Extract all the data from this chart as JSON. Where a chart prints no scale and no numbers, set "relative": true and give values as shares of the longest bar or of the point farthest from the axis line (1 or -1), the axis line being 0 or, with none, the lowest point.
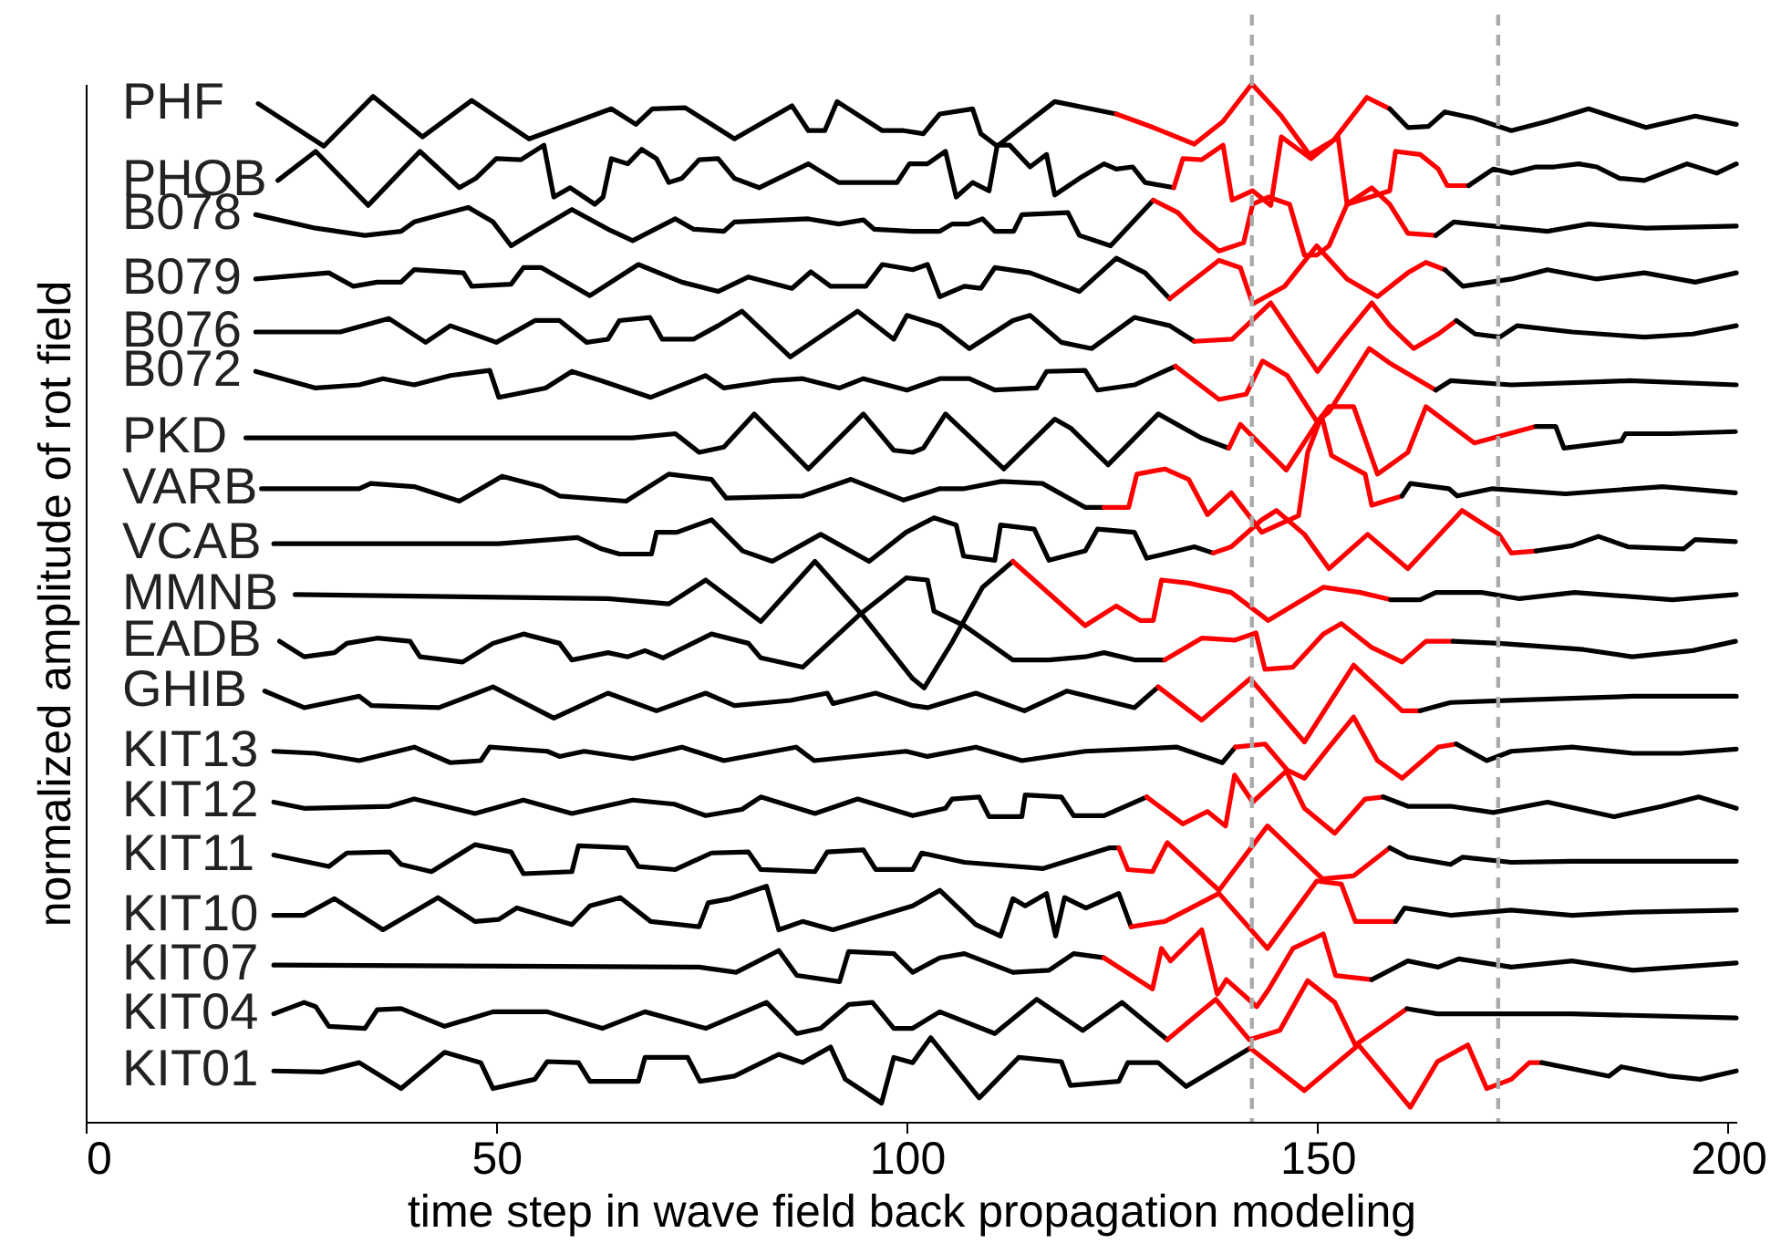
{
  "chart_data": {
    "type": "line",
    "relative": true,
    "xlabel": "time step in wave field back propagation modeling",
    "ylabel": "normalized amplitude of rot field",
    "xlim": [
      0,
      201
    ],
    "xticks": [
      0,
      50,
      100,
      150,
      200
    ],
    "ref_lines": [
      {
        "axis": "x",
        "value": 142,
        "color": "#aaaaaa",
        "line_style": "dashed"
      },
      {
        "axis": "x",
        "value": 172,
        "color": "#aaaaaa",
        "line_style": "dashed"
      }
    ],
    "series": [
      {
        "name": "PHF",
        "color": "#000000",
        "x": [
          21,
          29,
          35,
          41,
          47,
          54,
          64,
          67,
          69,
          73,
          75,
          79,
          86,
          88,
          90,
          91.5,
          97,
          99.6,
          102,
          104,
          108,
          109,
          111,
          118,
          125.5
        ],
        "values": [
          0.981,
          0.94,
          0.988,
          0.949,
          0.984,
          0.947,
          0.976,
          0.961,
          0.976,
          0.977,
          0.967,
          0.947,
          0.979,
          0.955,
          0.955,
          0.983,
          0.955,
          0.955,
          0.952,
          0.971,
          0.976,
          0.952,
          0.94,
          0.983,
          0.971
        ]
      },
      {
        "color": "#ff0000",
        "x": [
          125.5,
          130,
          135,
          138.5,
          142,
          145.5,
          149,
          152,
          156,
          158.8
        ],
        "values": [
          0.971,
          0.958,
          0.942,
          0.964,
          1.0,
          0.97,
          0.932,
          0.946,
          0.987,
          0.976
        ]
      },
      {
        "color": "#000000",
        "x": [
          158.8,
          161,
          163.5,
          165.5,
          169,
          173.6,
          178,
          183,
          190,
          196,
          201
        ],
        "values": [
          0.976,
          0.958,
          0.959,
          0.973,
          0.967,
          0.955,
          0.964,
          0.976,
          0.958,
          0.969,
          0.961
        ]
      },
      {
        "name": "PHOB",
        "color": "#000000",
        "x": [
          23.4,
          28,
          34.4,
          40.7,
          45.5,
          47.5,
          50,
          53,
          55.8,
          57,
          59,
          62,
          63,
          64,
          66,
          67.7,
          69.5,
          71,
          72.6,
          74.7,
          77,
          79,
          82,
          88,
          91.7,
          98.8,
          100.3,
          102.5,
          104.7,
          106,
          108,
          110,
          111,
          112.5,
          115,
          117,
          118,
          121,
          124,
          125.5,
          127.5,
          129,
          132.5
        ],
        "values": [
          0.907,
          0.935,
          0.883,
          0.935,
          0.9,
          0.909,
          0.928,
          0.927,
          0.941,
          0.891,
          0.9,
          0.884,
          0.891,
          0.928,
          0.923,
          0.937,
          0.928,
          0.905,
          0.909,
          0.927,
          0.928,
          0.909,
          0.9,
          0.923,
          0.905,
          0.905,
          0.923,
          0.923,
          0.935,
          0.891,
          0.905,
          0.897,
          0.941,
          0.941,
          0.92,
          0.932,
          0.893,
          0.909,
          0.923,
          0.918,
          0.92,
          0.905,
          0.9
        ]
      },
      {
        "color": "#ff0000",
        "x": [
          132.5,
          133.6,
          135.9,
          138.5,
          139.6,
          142.1,
          144.3,
          145.6,
          148,
          149.2,
          152.5,
          153.6,
          158.8,
          159.5,
          162.5,
          164.7,
          165.8,
          168.4
        ],
        "values": [
          0.9,
          0.928,
          0.927,
          0.941,
          0.888,
          0.897,
          0.883,
          0.949,
          0.935,
          0.928,
          0.949,
          0.884,
          0.897,
          0.935,
          0.932,
          0.918,
          0.902,
          0.902
        ]
      },
      {
        "color": "#000000",
        "x": [
          168.4,
          171.4,
          173.6,
          176.6,
          178.8,
          181.8,
          184,
          186.8,
          189.8,
          195,
          198.6,
          201
        ],
        "values": [
          0.902,
          0.918,
          0.914,
          0.92,
          0.92,
          0.923,
          0.92,
          0.909,
          0.907,
          0.923,
          0.914,
          0.923
        ]
      },
      {
        "name": "B078",
        "color": "#000000",
        "x": [
          20.7,
          28,
          34,
          38.4,
          40,
          46.6,
          49.6,
          51.8,
          54.7,
          59.2,
          63.6,
          66.6,
          71.8,
          74,
          77.7,
          79,
          88,
          91.7,
          94.7,
          96,
          100.7,
          104,
          105.5,
          107.5,
          109.2,
          110.7,
          113,
          114,
          119.6,
          121,
          124.8,
          130
        ],
        "values": [
          0.874,
          0.861,
          0.854,
          0.858,
          0.867,
          0.881,
          0.867,
          0.844,
          0.858,
          0.879,
          0.86,
          0.849,
          0.87,
          0.86,
          0.858,
          0.867,
          0.87,
          0.865,
          0.869,
          0.86,
          0.858,
          0.858,
          0.865,
          0.865,
          0.87,
          0.858,
          0.858,
          0.874,
          0.876,
          0.854,
          0.844,
          0.888
        ]
      },
      {
        "color": "#ff0000",
        "x": [
          130,
          133,
          135.1,
          138,
          141,
          142.1,
          144,
          146.6,
          148.4,
          149.9,
          151.4,
          153.6,
          156.6,
          158.8,
          161,
          164.4
        ],
        "values": [
          0.888,
          0.876,
          0.858,
          0.839,
          0.847,
          0.884,
          0.891,
          0.884,
          0.835,
          0.835,
          0.844,
          0.884,
          0.9,
          0.884,
          0.856,
          0.854
        ]
      },
      {
        "color": "#000000",
        "x": [
          164.4,
          166.6,
          171.4,
          178,
          183,
          190,
          201
        ],
        "values": [
          0.854,
          0.867,
          0.863,
          0.858,
          0.865,
          0.861,
          0.863
        ]
      },
      {
        "name": "B079",
        "color": "#000000",
        "x": [
          20.7,
          29.6,
          32.6,
          35.5,
          38.4,
          40,
          46,
          47,
          51.8,
          53.3,
          55.5,
          61.4,
          67.3,
          72.6,
          77,
          80.7,
          86,
          88.3,
          90.7,
          95,
          97,
          100.7,
          102.5,
          104,
          107,
          109,
          110.7,
          115,
          121,
          125.5,
          129,
          132
        ],
        "values": [
          0.812,
          0.818,
          0.805,
          0.809,
          0.809,
          0.821,
          0.818,
          0.805,
          0.807,
          0.823,
          0.823,
          0.796,
          0.826,
          0.809,
          0.8,
          0.814,
          0.803,
          0.819,
          0.805,
          0.805,
          0.826,
          0.821,
          0.826,
          0.795,
          0.805,
          0.803,
          0.823,
          0.818,
          0.8,
          0.832,
          0.818,
          0.793
        ]
      },
      {
        "color": "#ff0000",
        "x": [
          132,
          138,
          140.6,
          142.1,
          146,
          149.9,
          153.6,
          157.3,
          161,
          163.2,
          165.5
        ],
        "values": [
          0.793,
          0.83,
          0.823,
          0.788,
          0.805,
          0.844,
          0.812,
          0.795,
          0.818,
          0.828,
          0.821
        ]
      },
      {
        "color": "#000000",
        "x": [
          165.5,
          167.7,
          173.6,
          178,
          184,
          189.8,
          196,
          201
        ],
        "values": [
          0.821,
          0.805,
          0.812,
          0.821,
          0.812,
          0.818,
          0.809,
          0.818
        ]
      },
      {
        "name": "B076",
        "color": "#000000",
        "x": [
          20.7,
          31,
          36.9,
          41.4,
          44.4,
          50,
          54.7,
          57.7,
          61,
          63.6,
          65,
          68.7,
          70.2,
          74,
          77,
          79.9,
          85.8,
          94,
          98.4,
          100,
          104,
          107.6,
          112.9,
          115,
          118.8,
          122.5,
          127.7,
          132,
          135
        ],
        "values": [
          0.761,
          0.761,
          0.774,
          0.751,
          0.767,
          0.751,
          0.772,
          0.772,
          0.751,
          0.754,
          0.772,
          0.775,
          0.754,
          0.754,
          0.767,
          0.781,
          0.737,
          0.781,
          0.754,
          0.777,
          0.767,
          0.745,
          0.772,
          0.777,
          0.751,
          0.745,
          0.775,
          0.767,
          0.752
        ]
      },
      {
        "color": "#ff0000",
        "x": [
          135,
          139.6,
          144.3,
          147.3,
          150,
          153,
          156.6,
          158.8,
          161.7,
          164.7,
          166.9
        ],
        "values": [
          0.752,
          0.754,
          0.789,
          0.754,
          0.723,
          0.754,
          0.789,
          0.767,
          0.745,
          0.759,
          0.772
        ]
      },
      {
        "color": "#000000",
        "x": [
          166.9,
          169.2,
          172.2,
          174.3,
          181,
          189.8,
          195.7,
          201
        ],
        "values": [
          0.772,
          0.759,
          0.756,
          0.767,
          0.761,
          0.756,
          0.759,
          0.767
        ]
      },
      {
        "name": "B072",
        "color": "#000000",
        "x": [
          20.7,
          28,
          33.3,
          36.2,
          40,
          44.4,
          49.2,
          50.3,
          56,
          59.2,
          62.8,
          68.8,
          75.5,
          77.7,
          83.6,
          87.3,
          91.8,
          94.7,
          100,
          104,
          107.6,
          110.7,
          115.8,
          117,
          121.7,
          123.2,
          127.7,
          132.7
        ],
        "values": [
          0.723,
          0.707,
          0.71,
          0.716,
          0.71,
          0.719,
          0.724,
          0.698,
          0.707,
          0.723,
          0.714,
          0.698,
          0.719,
          0.707,
          0.714,
          0.716,
          0.707,
          0.716,
          0.705,
          0.716,
          0.716,
          0.705,
          0.707,
          0.723,
          0.724,
          0.705,
          0.71,
          0.728
        ]
      },
      {
        "color": "#ff0000",
        "x": [
          132.7,
          138,
          141.3,
          143.3,
          146.3,
          149.9,
          151.4,
          156.3,
          158.8,
          164.4
        ],
        "values": [
          0.728,
          0.696,
          0.701,
          0.733,
          0.719,
          0.675,
          0.684,
          0.745,
          0.731,
          0.705
        ]
      },
      {
        "color": "#000000",
        "x": [
          164.4,
          166.2,
          173.6,
          188,
          201
        ],
        "values": [
          0.705,
          0.714,
          0.71,
          0.714,
          0.71
        ]
      },
      {
        "name": "PKD",
        "color": "#000000",
        "x": [
          19.5,
          66.6,
          71.8,
          74.7,
          77.7,
          81.4,
          88,
          94.7,
          98.4,
          100.7,
          102,
          104.7,
          111.8,
          118,
          120,
          124.5,
          130.6,
          135.8,
          139.2
        ],
        "values": [
          0.659,
          0.659,
          0.663,
          0.645,
          0.65,
          0.682,
          0.629,
          0.682,
          0.647,
          0.645,
          0.649,
          0.682,
          0.629,
          0.677,
          0.668,
          0.633,
          0.682,
          0.659,
          0.649
        ]
      },
      {
        "color": "#ff0000",
        "x": [
          139.2,
          140.6,
          146.2,
          149.9,
          151.4,
          154.4,
          157.3,
          161,
          163.2,
          169.1,
          176.6
        ],
        "values": [
          0.649,
          0.672,
          0.628,
          0.673,
          0.689,
          0.689,
          0.624,
          0.645,
          0.689,
          0.654,
          0.67
        ]
      },
      {
        "color": "#000000",
        "x": [
          176.6,
          179,
          180,
          187,
          187.5,
          193,
          200.9
        ],
        "values": [
          0.67,
          0.67,
          0.649,
          0.656,
          0.663,
          0.663,
          0.665
        ]
      },
      {
        "name": "VARB",
        "color": "#000000",
        "x": [
          21.4,
          33.3,
          34.7,
          40,
          45.5,
          50.7,
          55.5,
          57.7,
          65.8,
          71,
          76.2,
          78,
          87.3,
          93.2,
          99.6,
          104,
          107,
          111.5,
          116.5,
          121.7,
          124
        ],
        "values": [
          0.61,
          0.61,
          0.615,
          0.612,
          0.598,
          0.622,
          0.612,
          0.603,
          0.598,
          0.624,
          0.619,
          0.601,
          0.603,
          0.619,
          0.599,
          0.61,
          0.61,
          0.617,
          0.615,
          0.592,
          0.592
        ]
      },
      {
        "color": "#ff0000",
        "x": [
          124,
          127,
          128,
          131.4,
          134.3,
          136.6,
          139.5,
          143.2,
          147.7,
          148.8,
          150.5,
          151.7,
          155.8,
          156.6,
          160.3
        ],
        "values": [
          0.592,
          0.592,
          0.624,
          0.629,
          0.619,
          0.585,
          0.606,
          0.568,
          0.584,
          0.645,
          0.68,
          0.642,
          0.624,
          0.594,
          0.603
        ]
      },
      {
        "color": "#000000",
        "x": [
          160.3,
          161.3,
          166,
          167,
          171.3,
          180.2,
          192,
          200.9
        ],
        "values": [
          0.603,
          0.615,
          0.61,
          0.603,
          0.61,
          0.605,
          0.612,
          0.606
        ]
      },
      {
        "name": "VCAB",
        "color": "#000000",
        "x": [
          22.9,
          50.3,
          59.9,
          62.8,
          65,
          68.9,
          69.5,
          72,
          76.2,
          80,
          83.6,
          89.5,
          95.4,
          99.9,
          103.3,
          106,
          106.9,
          110.7,
          111.4,
          115.5,
          117.3,
          121.7,
          123.2,
          127.7,
          129.2,
          135,
          137.3
        ],
        "values": [
          0.557,
          0.557,
          0.563,
          0.552,
          0.547,
          0.547,
          0.568,
          0.568,
          0.58,
          0.55,
          0.54,
          0.566,
          0.54,
          0.568,
          0.582,
          0.575,
          0.545,
          0.541,
          0.575,
          0.571,
          0.541,
          0.55,
          0.571,
          0.568,
          0.543,
          0.554,
          0.548
        ]
      },
      {
        "color": "#ff0000",
        "x": [
          137.3,
          139.5,
          143.2,
          145,
          148.4,
          151.4,
          156.1,
          161,
          167.6,
          172.1,
          173.6,
          176.6
        ],
        "values": [
          0.548,
          0.554,
          0.58,
          0.589,
          0.566,
          0.533,
          0.566,
          0.533,
          0.589,
          0.566,
          0.548,
          0.55
        ]
      },
      {
        "color": "#000000",
        "x": [
          176.6,
          181,
          184.2,
          187.8,
          194.6,
          196,
          200.9
        ],
        "values": [
          0.55,
          0.555,
          0.564,
          0.554,
          0.552,
          0.561,
          0.559
        ]
      },
      {
        "name": "MMNB",
        "color": "#000000",
        "x": [
          25.5,
          63.6,
          71,
          75.5,
          82.2,
          88.8,
          94.7,
          100.7,
          102.1,
          105.5,
          109.2,
          112.9
        ],
        "values": [
          0.508,
          0.504,
          0.499,
          0.522,
          0.482,
          0.54,
          0.487,
          0.427,
          0.418,
          0.462,
          0.515,
          0.54
        ]
      },
      {
        "color": "#ff0000",
        "x": [
          112.9,
          121.7,
          125.5,
          128.4,
          130,
          131,
          134.3,
          139.5,
          144,
          150.7,
          155.2,
          158.9
        ],
        "values": [
          0.54,
          0.478,
          0.497,
          0.483,
          0.483,
          0.522,
          0.519,
          0.51,
          0.483,
          0.515,
          0.51,
          0.503
        ]
      },
      {
        "color": "#000000",
        "x": [
          158.9,
          162.5,
          164.4,
          170,
          174.6,
          181.3,
          193.2,
          201
        ],
        "values": [
          0.503,
          0.503,
          0.51,
          0.51,
          0.504,
          0.51,
          0.503,
          0.508
        ]
      },
      {
        "name": "EADB",
        "color": "#000000",
        "x": [
          23.6,
          26.6,
          30.3,
          31.8,
          35.5,
          39.5,
          40.7,
          45.9,
          49.6,
          53.3,
          57.7,
          59.2,
          63.6,
          66,
          68.1,
          70.3,
          76.2,
          80.7,
          82.2,
          87.3,
          94,
          99.9,
          102.5,
          103.3,
          107,
          112.9,
          117.3,
          121.7,
          124,
          127.7,
          131.4
        ],
        "values": [
          0.463,
          0.448,
          0.452,
          0.461,
          0.466,
          0.463,
          0.448,
          0.443,
          0.461,
          0.47,
          0.461,
          0.445,
          0.452,
          0.448,
          0.454,
          0.447,
          0.47,
          0.461,
          0.447,
          0.438,
          0.487,
          0.524,
          0.522,
          0.492,
          0.478,
          0.445,
          0.445,
          0.448,
          0.452,
          0.445,
          0.445
        ]
      },
      {
        "color": "#ff0000",
        "x": [
          131.4,
          135.9,
          139.9,
          142.5,
          143.6,
          147,
          150.7,
          152.9,
          156.6,
          160.3,
          163.2,
          166.5
        ],
        "values": [
          0.445,
          0.466,
          0.464,
          0.471,
          0.436,
          0.438,
          0.47,
          0.48,
          0.457,
          0.443,
          0.463,
          0.463
        ]
      },
      {
        "color": "#000000",
        "x": [
          166.5,
          172.1,
          182.4,
          188.3,
          195.7,
          200.9
        ],
        "values": [
          0.463,
          0.461,
          0.455,
          0.448,
          0.454,
          0.463
        ]
      },
      {
        "name": "GHIB",
        "color": "#000000",
        "x": [
          21.8,
          26.6,
          33.3,
          34.8,
          43,
          49.6,
          57,
          63.6,
          69.5,
          75.5,
          79,
          85.8,
          90.3,
          91,
          96.2,
          100.7,
          102.5,
          108.4,
          114.3,
          119.5,
          127.7,
          130.6
        ],
        "values": [
          0.415,
          0.399,
          0.41,
          0.401,
          0.399,
          0.419,
          0.389,
          0.413,
          0.396,
          0.413,
          0.401,
          0.406,
          0.413,
          0.403,
          0.413,
          0.401,
          0.399,
          0.413,
          0.396,
          0.415,
          0.399,
          0.419
        ]
      },
      {
        "color": "#ff0000",
        "x": [
          130.6,
          135.9,
          141.8,
          148.4,
          154.4,
          160.3,
          162.5
        ],
        "values": [
          0.419,
          0.387,
          0.427,
          0.366,
          0.44,
          0.396,
          0.396
        ]
      },
      {
        "color": "#000000",
        "x": [
          162.5,
          166.2,
          173.6,
          181,
          188.4,
          201
        ],
        "values": [
          0.396,
          0.404,
          0.406,
          0.408,
          0.41,
          0.41
        ]
      },
      {
        "name": "KIT13",
        "color": "#000000",
        "x": [
          22.9,
          28,
          33.3,
          40,
          44.4,
          48.1,
          49.2,
          56.2,
          57.7,
          60.7,
          66.6,
          72.6,
          77.7,
          86.5,
          88.7,
          99.9,
          102.5,
          108.4,
          114,
          121.7,
          132.9,
          138.4,
          140
        ],
        "values": [
          0.357,
          0.355,
          0.348,
          0.361,
          0.346,
          0.348,
          0.361,
          0.357,
          0.352,
          0.357,
          0.35,
          0.361,
          0.348,
          0.361,
          0.348,
          0.357,
          0.352,
          0.361,
          0.348,
          0.357,
          0.361,
          0.346,
          0.361
        ]
      },
      {
        "color": "#ff0000",
        "x": [
          140,
          143.6,
          146.3,
          148.4,
          151.4,
          154.4,
          157.3,
          160.3,
          164.7,
          166.9
        ],
        "values": [
          0.361,
          0.364,
          0.339,
          0.331,
          0.361,
          0.39,
          0.348,
          0.331,
          0.361,
          0.364
        ]
      },
      {
        "color": "#000000",
        "x": [
          166.9,
          170.6,
          173.6,
          181,
          188.4,
          194.3,
          201
        ],
        "values": [
          0.364,
          0.348,
          0.357,
          0.361,
          0.355,
          0.355,
          0.359
        ]
      },
      {
        "name": "KIT12",
        "color": "#000000",
        "x": [
          22.9,
          26.6,
          37,
          40,
          47.4,
          53.3,
          59.2,
          66.6,
          71.7,
          75.5,
          79.9,
          82.2,
          88.8,
          94,
          100.7,
          104.7,
          105.5,
          108.8,
          110,
          114,
          114.4,
          118.8,
          120.3,
          124,
          129.2
        ],
        "values": [
          0.308,
          0.302,
          0.304,
          0.311,
          0.297,
          0.31,
          0.297,
          0.31,
          0.306,
          0.295,
          0.301,
          0.313,
          0.297,
          0.311,
          0.295,
          0.302,
          0.311,
          0.313,
          0.294,
          0.294,
          0.315,
          0.313,
          0.295,
          0.295,
          0.313
        ]
      },
      {
        "color": "#ff0000",
        "x": [
          129.2,
          133.6,
          136.6,
          138.8,
          139.9,
          142.1,
          146.2,
          148.4,
          152.1,
          155.8,
          158
        ],
        "values": [
          0.313,
          0.287,
          0.299,
          0.285,
          0.334,
          0.308,
          0.338,
          0.302,
          0.278,
          0.311,
          0.313
        ]
      },
      {
        "color": "#000000",
        "x": [
          158,
          161,
          166.2,
          171.4,
          178,
          186.1,
          192,
          196.4,
          201
        ],
        "values": [
          0.313,
          0.304,
          0.304,
          0.298,
          0.308,
          0.294,
          0.304,
          0.313,
          0.302
        ]
      },
      {
        "name": "KIT11",
        "color": "#000000",
        "x": [
          22.9,
          29.6,
          31.8,
          37,
          38.4,
          42.1,
          47.4,
          51.8,
          53.3,
          59.2,
          60,
          65.9,
          67.3,
          71.8,
          76.2,
          80.7,
          82.2,
          88.8,
          90.3,
          94.7,
          96.2,
          100.7,
          101.8,
          107,
          116.6,
          124.7,
          125.8
        ],
        "values": [
          0.257,
          0.246,
          0.259,
          0.26,
          0.248,
          0.241,
          0.267,
          0.26,
          0.239,
          0.241,
          0.266,
          0.264,
          0.246,
          0.243,
          0.259,
          0.26,
          0.243,
          0.241,
          0.26,
          0.262,
          0.243,
          0.243,
          0.259,
          0.25,
          0.244,
          0.264,
          0.264
        ]
      },
      {
        "color": "#ff0000",
        "x": [
          125.8,
          126.9,
          129.9,
          131.7,
          138,
          143.9,
          150.6,
          154.4,
          158.8
        ],
        "values": [
          0.264,
          0.243,
          0.241,
          0.269,
          0.223,
          0.285,
          0.234,
          0.237,
          0.264
        ]
      },
      {
        "color": "#000000",
        "x": [
          158.8,
          161,
          166.2,
          167.7,
          173.6,
          181,
          201
        ],
        "values": [
          0.264,
          0.255,
          0.248,
          0.255,
          0.25,
          0.251,
          0.251
        ]
      },
      {
        "name": "KIT10",
        "color": "#000000",
        "x": [
          22.9,
          26.6,
          30.3,
          36.2,
          42.9,
          47.4,
          50.3,
          52.5,
          59.2,
          61.4,
          65.1,
          68.8,
          74.7,
          75.8,
          78.5,
          82.9,
          84.4,
          87.3,
          91,
          100.7,
          104,
          108.4,
          111.4,
          112.9,
          114.4,
          117,
          118.1,
          119.2,
          121.8,
          125.8,
          127.3
        ],
        "values": [
          0.199,
          0.199,
          0.215,
          0.185,
          0.216,
          0.193,
          0.195,
          0.206,
          0.19,
          0.208,
          0.216,
          0.193,
          0.188,
          0.211,
          0.215,
          0.227,
          0.185,
          0.193,
          0.185,
          0.208,
          0.223,
          0.19,
          0.179,
          0.215,
          0.208,
          0.22,
          0.179,
          0.216,
          0.206,
          0.22,
          0.188
        ]
      },
      {
        "color": "#ff0000",
        "x": [
          127.3,
          131.4,
          138,
          143.9,
          149.9,
          152.9,
          154.6,
          159.5
        ],
        "values": [
          0.188,
          0.193,
          0.22,
          0.167,
          0.232,
          0.229,
          0.193,
          0.193
        ]
      },
      {
        "color": "#000000",
        "x": [
          159.5,
          160.6,
          166.2,
          173.6,
          181,
          188.4,
          201
        ],
        "values": [
          0.193,
          0.206,
          0.199,
          0.204,
          0.199,
          0.202,
          0.204
        ]
      },
      {
        "name": "KIT07",
        "color": "#000000",
        "x": [
          22.9,
          74.7,
          79.2,
          84.4,
          86.6,
          91.8,
          92.9,
          98.4,
          100.7,
          104,
          107,
          112.9,
          117.3,
          120.3,
          124
        ],
        "values": [
          0.151,
          0.149,
          0.144,
          0.165,
          0.141,
          0.135,
          0.164,
          0.162,
          0.144,
          0.158,
          0.162,
          0.144,
          0.146,
          0.162,
          0.158
        ]
      },
      {
        "color": "#ff0000",
        "x": [
          124,
          129.9,
          131,
          132.1,
          135.9,
          137.8,
          138.9,
          142.6,
          144,
          147,
          150.7,
          152.2,
          156.6
        ],
        "values": [
          0.158,
          0.128,
          0.167,
          0.155,
          0.185,
          0.123,
          0.137,
          0.111,
          0.127,
          0.167,
          0.181,
          0.141,
          0.137
        ]
      },
      {
        "color": "#000000",
        "x": [
          156.6,
          161,
          164.7,
          167.2,
          173.6,
          181,
          188.4,
          201
        ],
        "values": [
          0.137,
          0.155,
          0.149,
          0.157,
          0.149,
          0.155,
          0.146,
          0.153
        ]
      },
      {
        "name": "KIT04",
        "color": "#000000",
        "x": [
          22.9,
          26.6,
          28,
          29.6,
          34,
          35.5,
          38.4,
          43.7,
          49.6,
          56.2,
          62.9,
          68.1,
          75.5,
          82.9,
          86.6,
          89.5,
          92.9,
          95.8,
          98.4,
          100.7,
          104,
          110.7,
          115.8,
          121.4,
          126.2,
          131.7
        ],
        "values": [
          0.104,
          0.115,
          0.111,
          0.092,
          0.09,
          0.108,
          0.109,
          0.092,
          0.106,
          0.106,
          0.09,
          0.106,
          0.09,
          0.115,
          0.085,
          0.09,
          0.113,
          0.115,
          0.09,
          0.09,
          0.106,
          0.085,
          0.118,
          0.088,
          0.115,
          0.079
        ]
      },
      {
        "color": "#ff0000",
        "x": [
          131.7,
          137.6,
          141.7,
          145.4,
          148.8,
          152.1,
          154.6,
          160.9
        ],
        "values": [
          0.079,
          0.118,
          0.079,
          0.088,
          0.136,
          0.115,
          0.074,
          0.109
        ]
      },
      {
        "color": "#000000",
        "x": [
          160.9,
          164.6,
          171.1,
          181,
          201
        ],
        "values": [
          0.109,
          0.104,
          0.104,
          0.104,
          0.1
        ]
      },
      {
        "name": "KIT01",
        "color": "#000000",
        "x": [
          22.9,
          28.8,
          33.3,
          38.4,
          43.7,
          48.1,
          49.6,
          54.7,
          56.2,
          60,
          61.4,
          67.3,
          68.1,
          73.3,
          74.8,
          79,
          84.4,
          87.3,
          90.7,
          92.5,
          96.9,
          98.4,
          100.7,
          102.9,
          108.8,
          113.6,
          118.8,
          119.9,
          125.8,
          126.9,
          130.6,
          134,
          141.8
        ],
        "values": [
          0.049,
          0.048,
          0.057,
          0.032,
          0.067,
          0.057,
          0.032,
          0.041,
          0.058,
          0.057,
          0.039,
          0.039,
          0.062,
          0.062,
          0.039,
          0.044,
          0.065,
          0.057,
          0.072,
          0.041,
          0.018,
          0.062,
          0.057,
          0.081,
          0.023,
          0.062,
          0.058,
          0.035,
          0.039,
          0.057,
          0.057,
          0.034,
          0.071
        ]
      },
      {
        "color": "#ff0000",
        "x": [
          141.8,
          148.4,
          155,
          161.3,
          164.6,
          168.3,
          170.6,
          173.6,
          175.8,
          177.3
        ],
        "values": [
          0.071,
          0.03,
          0.074,
          0.014,
          0.058,
          0.074,
          0.032,
          0.041,
          0.057,
          0.057
        ]
      },
      {
        "color": "#000000",
        "x": [
          177.3,
          185.5,
          187,
          192.9,
          196.6,
          201
        ],
        "values": [
          0.057,
          0.044,
          0.053,
          0.044,
          0.041,
          0.049
        ]
      }
    ]
  }
}
